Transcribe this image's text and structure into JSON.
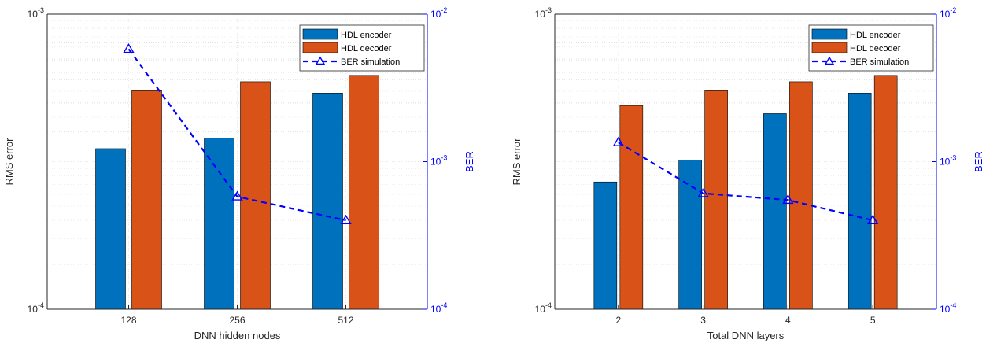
{
  "chart_data": [
    {
      "type": "bar",
      "categories": [
        "128",
        "256",
        "512"
      ],
      "xlabel": "DNN hidden nodes",
      "ylabel": "RMS error",
      "ylabel_right": "BER",
      "yscale": "log",
      "ylim": [
        0.0001,
        0.001
      ],
      "yticks": [
        "10^-4",
        "10^-3"
      ],
      "y2scale": "log",
      "y2lim": [
        0.0001,
        0.01
      ],
      "y2ticks": [
        "10^-4",
        "10^-3",
        "10^-2"
      ],
      "grid": true,
      "legend_position": "top-right",
      "series": [
        {
          "name": "HDL encoder",
          "kind": "bar",
          "color": "#0072BD",
          "values": [
            0.00035,
            0.00038,
            0.00054
          ]
        },
        {
          "name": "HDL decoder",
          "kind": "bar",
          "color": "#D95319",
          "values": [
            0.00055,
            0.00059,
            0.00062
          ]
        },
        {
          "name": "BER simulation",
          "kind": "line",
          "axis": "right",
          "color": "#0000FF",
          "style": "dashed",
          "marker": "triangle",
          "values": [
            0.0058,
            0.00058,
            0.0004
          ]
        }
      ]
    },
    {
      "type": "bar",
      "categories": [
        "2",
        "3",
        "4",
        "5"
      ],
      "xlabel": "Total DNN layers",
      "ylabel": "RMS error",
      "ylabel_right": "BER",
      "yscale": "log",
      "ylim": [
        0.0001,
        0.001
      ],
      "yticks": [
        "10^-4",
        "10^-3"
      ],
      "y2scale": "log",
      "y2lim": [
        0.0001,
        0.01
      ],
      "y2ticks": [
        "10^-4",
        "10^-3",
        "10^-2"
      ],
      "grid": true,
      "legend_position": "top-right",
      "series": [
        {
          "name": "HDL encoder",
          "kind": "bar",
          "color": "#0072BD",
          "values": [
            0.00027,
            0.00032,
            0.00046,
            0.00054
          ]
        },
        {
          "name": "HDL decoder",
          "kind": "bar",
          "color": "#D95319",
          "values": [
            0.00049,
            0.00055,
            0.00059,
            0.00062
          ]
        },
        {
          "name": "BER simulation",
          "kind": "line",
          "axis": "right",
          "color": "#0000FF",
          "style": "dashed",
          "marker": "triangle",
          "values": [
            0.00135,
            0.00061,
            0.00055,
            0.0004
          ]
        }
      ]
    }
  ]
}
